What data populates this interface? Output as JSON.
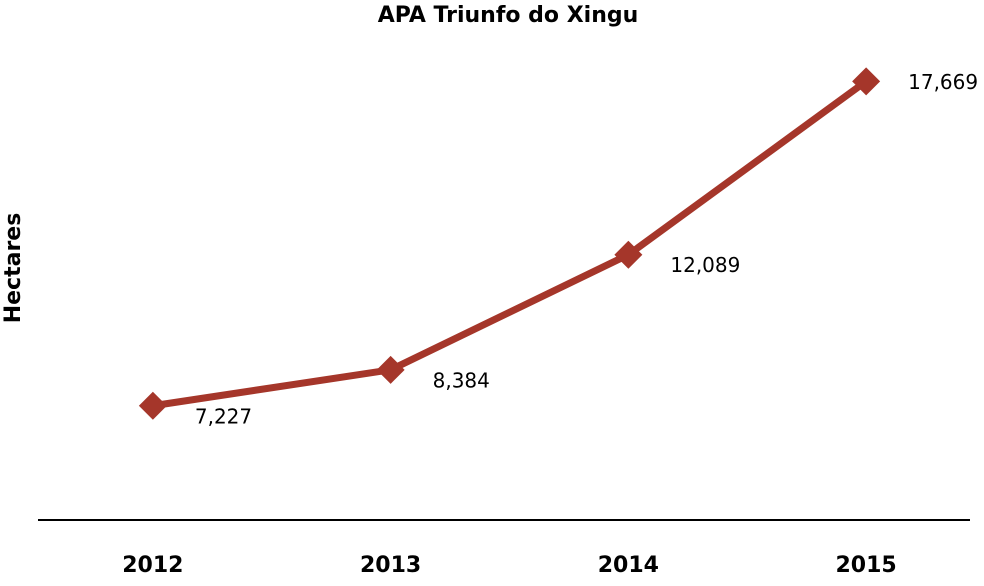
{
  "chart_data": {
    "type": "line",
    "title": "APA Triunfo do Xingu",
    "y_label": "Hectares",
    "categories": [
      "2012",
      "2013",
      "2014",
      "2015"
    ],
    "values": [
      7227,
      8384,
      12089,
      17669
    ],
    "value_labels": [
      "7,227",
      "8,384",
      "12,089",
      "17,669"
    ],
    "color": "#a5362a",
    "ylim": [
      3550,
      19000
    ]
  }
}
